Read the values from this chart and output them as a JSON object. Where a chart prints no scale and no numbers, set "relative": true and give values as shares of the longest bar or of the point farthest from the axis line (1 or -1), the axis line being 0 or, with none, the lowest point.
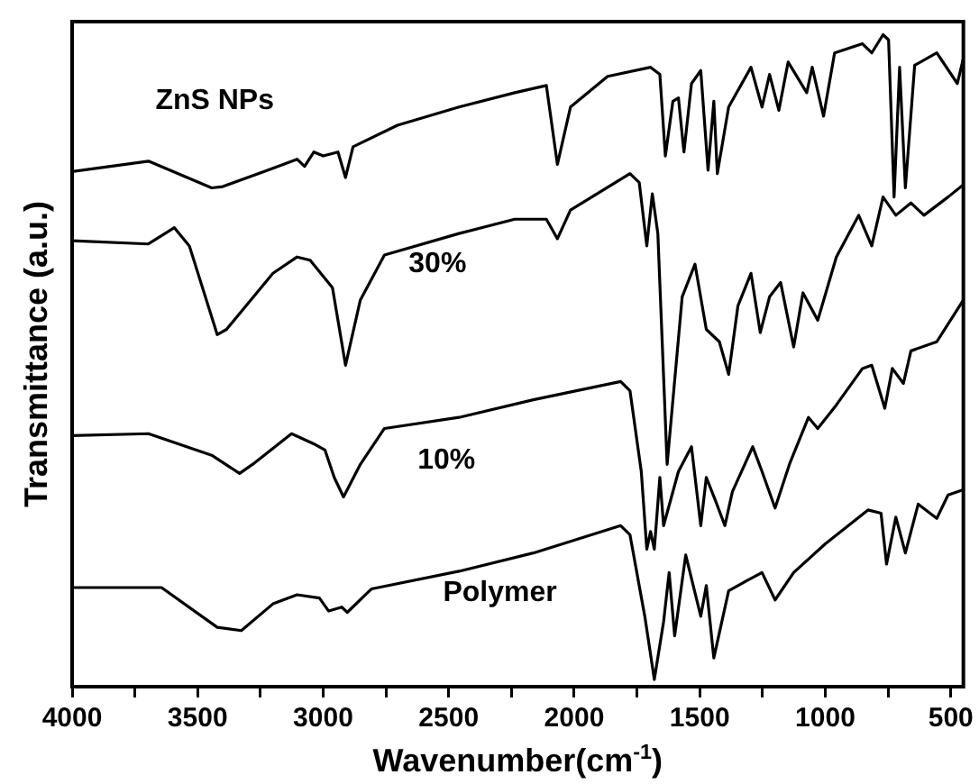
{
  "chart_data": {
    "type": "line",
    "xlabel": "Wavenumber(cm$^{-1}$)",
    "ylabel": "Transmittance (a.u.)",
    "relative": true,
    "xlim": [
      4000,
      450
    ],
    "xticks": [
      4000,
      {
        "value": 3750,
        "label": null
      },
      3500,
      {
        "value": 3250,
        "label": null
      },
      3000,
      {
        "value": 2750,
        "label": null
      },
      2500,
      {
        "value": 2250,
        "label": null
      },
      2000,
      {
        "value": 1750,
        "label": null
      },
      1500,
      {
        "value": 1250,
        "label": null
      },
      1000,
      {
        "value": 750,
        "label": null
      },
      500
    ],
    "series": [
      {
        "name": "ZnS NPs",
        "color": "#000000",
        "x": [
          4000,
          3696,
          3444,
          3400,
          3222,
          3104,
          3074,
          3037,
          3000,
          2941,
          2911,
          2881,
          2704,
          2459,
          2237,
          2111,
          2067,
          2015,
          1867,
          1696,
          1659,
          1637,
          1607,
          1585,
          1563,
          1533,
          1496,
          1467,
          1444,
          1430,
          1385,
          1296,
          1252,
          1222,
          1185,
          1148,
          1074,
          1052,
          1007,
          963,
          852,
          815,
          770,
          748,
          726,
          704,
          681,
          644,
          556,
          474,
          450
        ],
        "values": [
          0.79,
          0.806,
          0.765,
          0.767,
          0.792,
          0.809,
          0.798,
          0.82,
          0.814,
          0.82,
          0.781,
          0.828,
          0.861,
          0.889,
          0.911,
          0.922,
          0.801,
          0.889,
          0.936,
          0.95,
          0.939,
          0.814,
          0.898,
          0.903,
          0.82,
          0.925,
          0.945,
          0.792,
          0.898,
          0.787,
          0.889,
          0.95,
          0.889,
          0.939,
          0.884,
          0.958,
          0.911,
          0.95,
          0.875,
          0.972,
          0.986,
          0.972,
          1,
          0.992,
          0.751,
          0.95,
          0.765,
          0.953,
          0.972,
          0.925,
          0.964
        ]
      },
      {
        "name": "30%",
        "color": "#000000",
        "x": [
          4000,
          3696,
          3593,
          3533,
          3422,
          3385,
          3200,
          3104,
          3052,
          2963,
          2911,
          2852,
          2756,
          2459,
          2237,
          2111,
          2067,
          2015,
          1778,
          1741,
          1711,
          1689,
          1667,
          1630,
          1570,
          1519,
          1474,
          1422,
          1385,
          1348,
          1296,
          1259,
          1222,
          1178,
          1126,
          1089,
          1030,
          956,
          867,
          815,
          770,
          719,
          659,
          607,
          511,
          450
        ],
        "values": [
          0.684,
          0.679,
          0.704,
          0.676,
          0.54,
          0.548,
          0.634,
          0.659,
          0.654,
          0.612,
          0.493,
          0.593,
          0.662,
          0.695,
          0.717,
          0.717,
          0.687,
          0.731,
          0.787,
          0.773,
          0.676,
          0.756,
          0.695,
          0.341,
          0.598,
          0.648,
          0.548,
          0.529,
          0.479,
          0.584,
          0.634,
          0.543,
          0.598,
          0.62,
          0.521,
          0.604,
          0.562,
          0.659,
          0.723,
          0.676,
          0.751,
          0.723,
          0.742,
          0.723,
          0.751,
          0.77
        ]
      },
      {
        "name": "10%",
        "color": "#000000",
        "x": [
          4000,
          3696,
          3444,
          3333,
          3274,
          3126,
          3030,
          2993,
          2956,
          2919,
          2852,
          2756,
          2459,
          2163,
          1815,
          1778,
          1733,
          1711,
          1696,
          1681,
          1659,
          1644,
          1585,
          1533,
          1496,
          1474,
          1437,
          1400,
          1370,
          1289,
          1252,
          1200,
          1141,
          1067,
          1030,
          956,
          852,
          815,
          763,
          733,
          689,
          659,
          556,
          450
        ],
        "values": [
          0.385,
          0.388,
          0.355,
          0.327,
          0.343,
          0.388,
          0.371,
          0.363,
          0.321,
          0.291,
          0.341,
          0.396,
          0.413,
          0.44,
          0.468,
          0.454,
          0.33,
          0.211,
          0.238,
          0.211,
          0.321,
          0.247,
          0.33,
          0.368,
          0.247,
          0.321,
          0.285,
          0.247,
          0.299,
          0.368,
          0.33,
          0.274,
          0.343,
          0.413,
          0.396,
          0.432,
          0.488,
          0.493,
          0.427,
          0.488,
          0.465,
          0.515,
          0.529,
          0.593
        ]
      },
      {
        "name": "Polymer",
        "color": "#000000",
        "x": [
          4000,
          3644,
          3422,
          3326,
          3200,
          3104,
          3015,
          2978,
          2926,
          2904,
          2807,
          2459,
          2163,
          1815,
          1778,
          1719,
          1681,
          1644,
          1622,
          1600,
          1556,
          1496,
          1474,
          1444,
          1385,
          1311,
          1252,
          1200,
          1126,
          1000,
          830,
          778,
          756,
          719,
          681,
          630,
          556,
          511,
          450
        ],
        "values": [
          0.152,
          0.152,
          0.091,
          0.086,
          0.127,
          0.141,
          0.136,
          0.116,
          0.122,
          0.114,
          0.15,
          0.177,
          0.205,
          0.247,
          0.233,
          0.108,
          0.011,
          0.1,
          0.175,
          0.078,
          0.202,
          0.108,
          0.155,
          0.044,
          0.147,
          0.163,
          0.175,
          0.133,
          0.175,
          0.219,
          0.271,
          0.266,
          0.188,
          0.26,
          0.205,
          0.28,
          0.258,
          0.294,
          0.302
        ]
      }
    ]
  }
}
